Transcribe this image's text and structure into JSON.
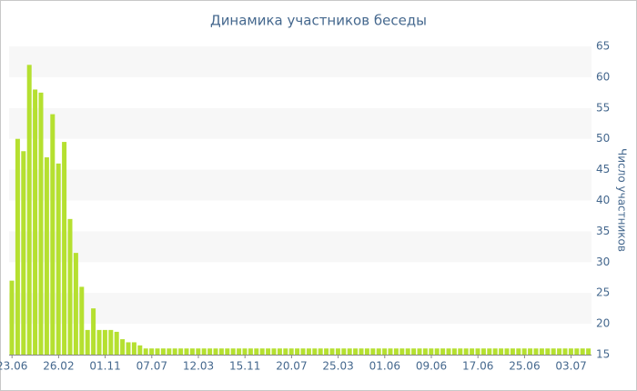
{
  "chart_data": {
    "type": "bar",
    "title": "Динамика участников беседы",
    "y_axis_label": "Число участников",
    "color": "#b5e030",
    "band_color": "#f7f7f7",
    "categories": [
      "23.06",
      null,
      null,
      null,
      null,
      null,
      null,
      null,
      "26.02",
      null,
      null,
      null,
      null,
      null,
      null,
      null,
      "01.11",
      null,
      null,
      null,
      null,
      null,
      null,
      null,
      "07.07",
      null,
      null,
      null,
      null,
      null,
      null,
      null,
      "12.03",
      null,
      null,
      null,
      null,
      null,
      null,
      null,
      "15.11",
      null,
      null,
      null,
      null,
      null,
      null,
      null,
      "20.07",
      null,
      null,
      null,
      null,
      null,
      null,
      null,
      "25.03",
      null,
      null,
      null,
      null,
      null,
      null,
      null,
      "01.06",
      null,
      null,
      null,
      null,
      null,
      null,
      null,
      "09.06",
      null,
      null,
      null,
      null,
      null,
      null,
      null,
      "17.06",
      null,
      null,
      null,
      null,
      null,
      null,
      null,
      "25.06",
      null,
      null,
      null,
      null,
      null,
      null,
      null,
      "03.07",
      null,
      null,
      null
    ],
    "values": [
      27,
      50,
      48,
      62,
      58,
      57.5,
      47,
      54,
      46,
      49.5,
      37,
      31.5,
      26,
      19,
      22.5,
      19,
      19,
      19,
      18.7,
      17.5,
      17,
      17,
      16.5,
      16,
      16,
      16,
      16,
      16,
      16,
      16,
      16,
      16,
      16,
      16,
      16,
      16,
      16,
      16,
      16,
      16,
      16,
      16,
      16,
      16,
      16,
      16,
      16,
      16,
      16,
      16,
      16,
      16,
      16,
      16,
      16,
      16,
      16,
      16,
      16,
      16,
      16,
      16,
      16,
      16,
      16,
      16,
      16,
      16,
      16,
      16,
      16,
      16,
      16,
      16,
      16,
      16,
      16,
      16,
      16,
      16,
      16,
      16,
      16,
      16,
      16,
      16,
      16,
      16,
      16,
      16,
      16,
      16,
      16,
      16,
      16,
      16,
      16,
      16,
      16,
      16
    ],
    "ylim": [
      15,
      65
    ],
    "yticks": [
      15,
      20,
      25,
      30,
      35,
      40,
      45,
      50,
      55,
      60,
      65
    ],
    "y_axis_side": "right"
  }
}
